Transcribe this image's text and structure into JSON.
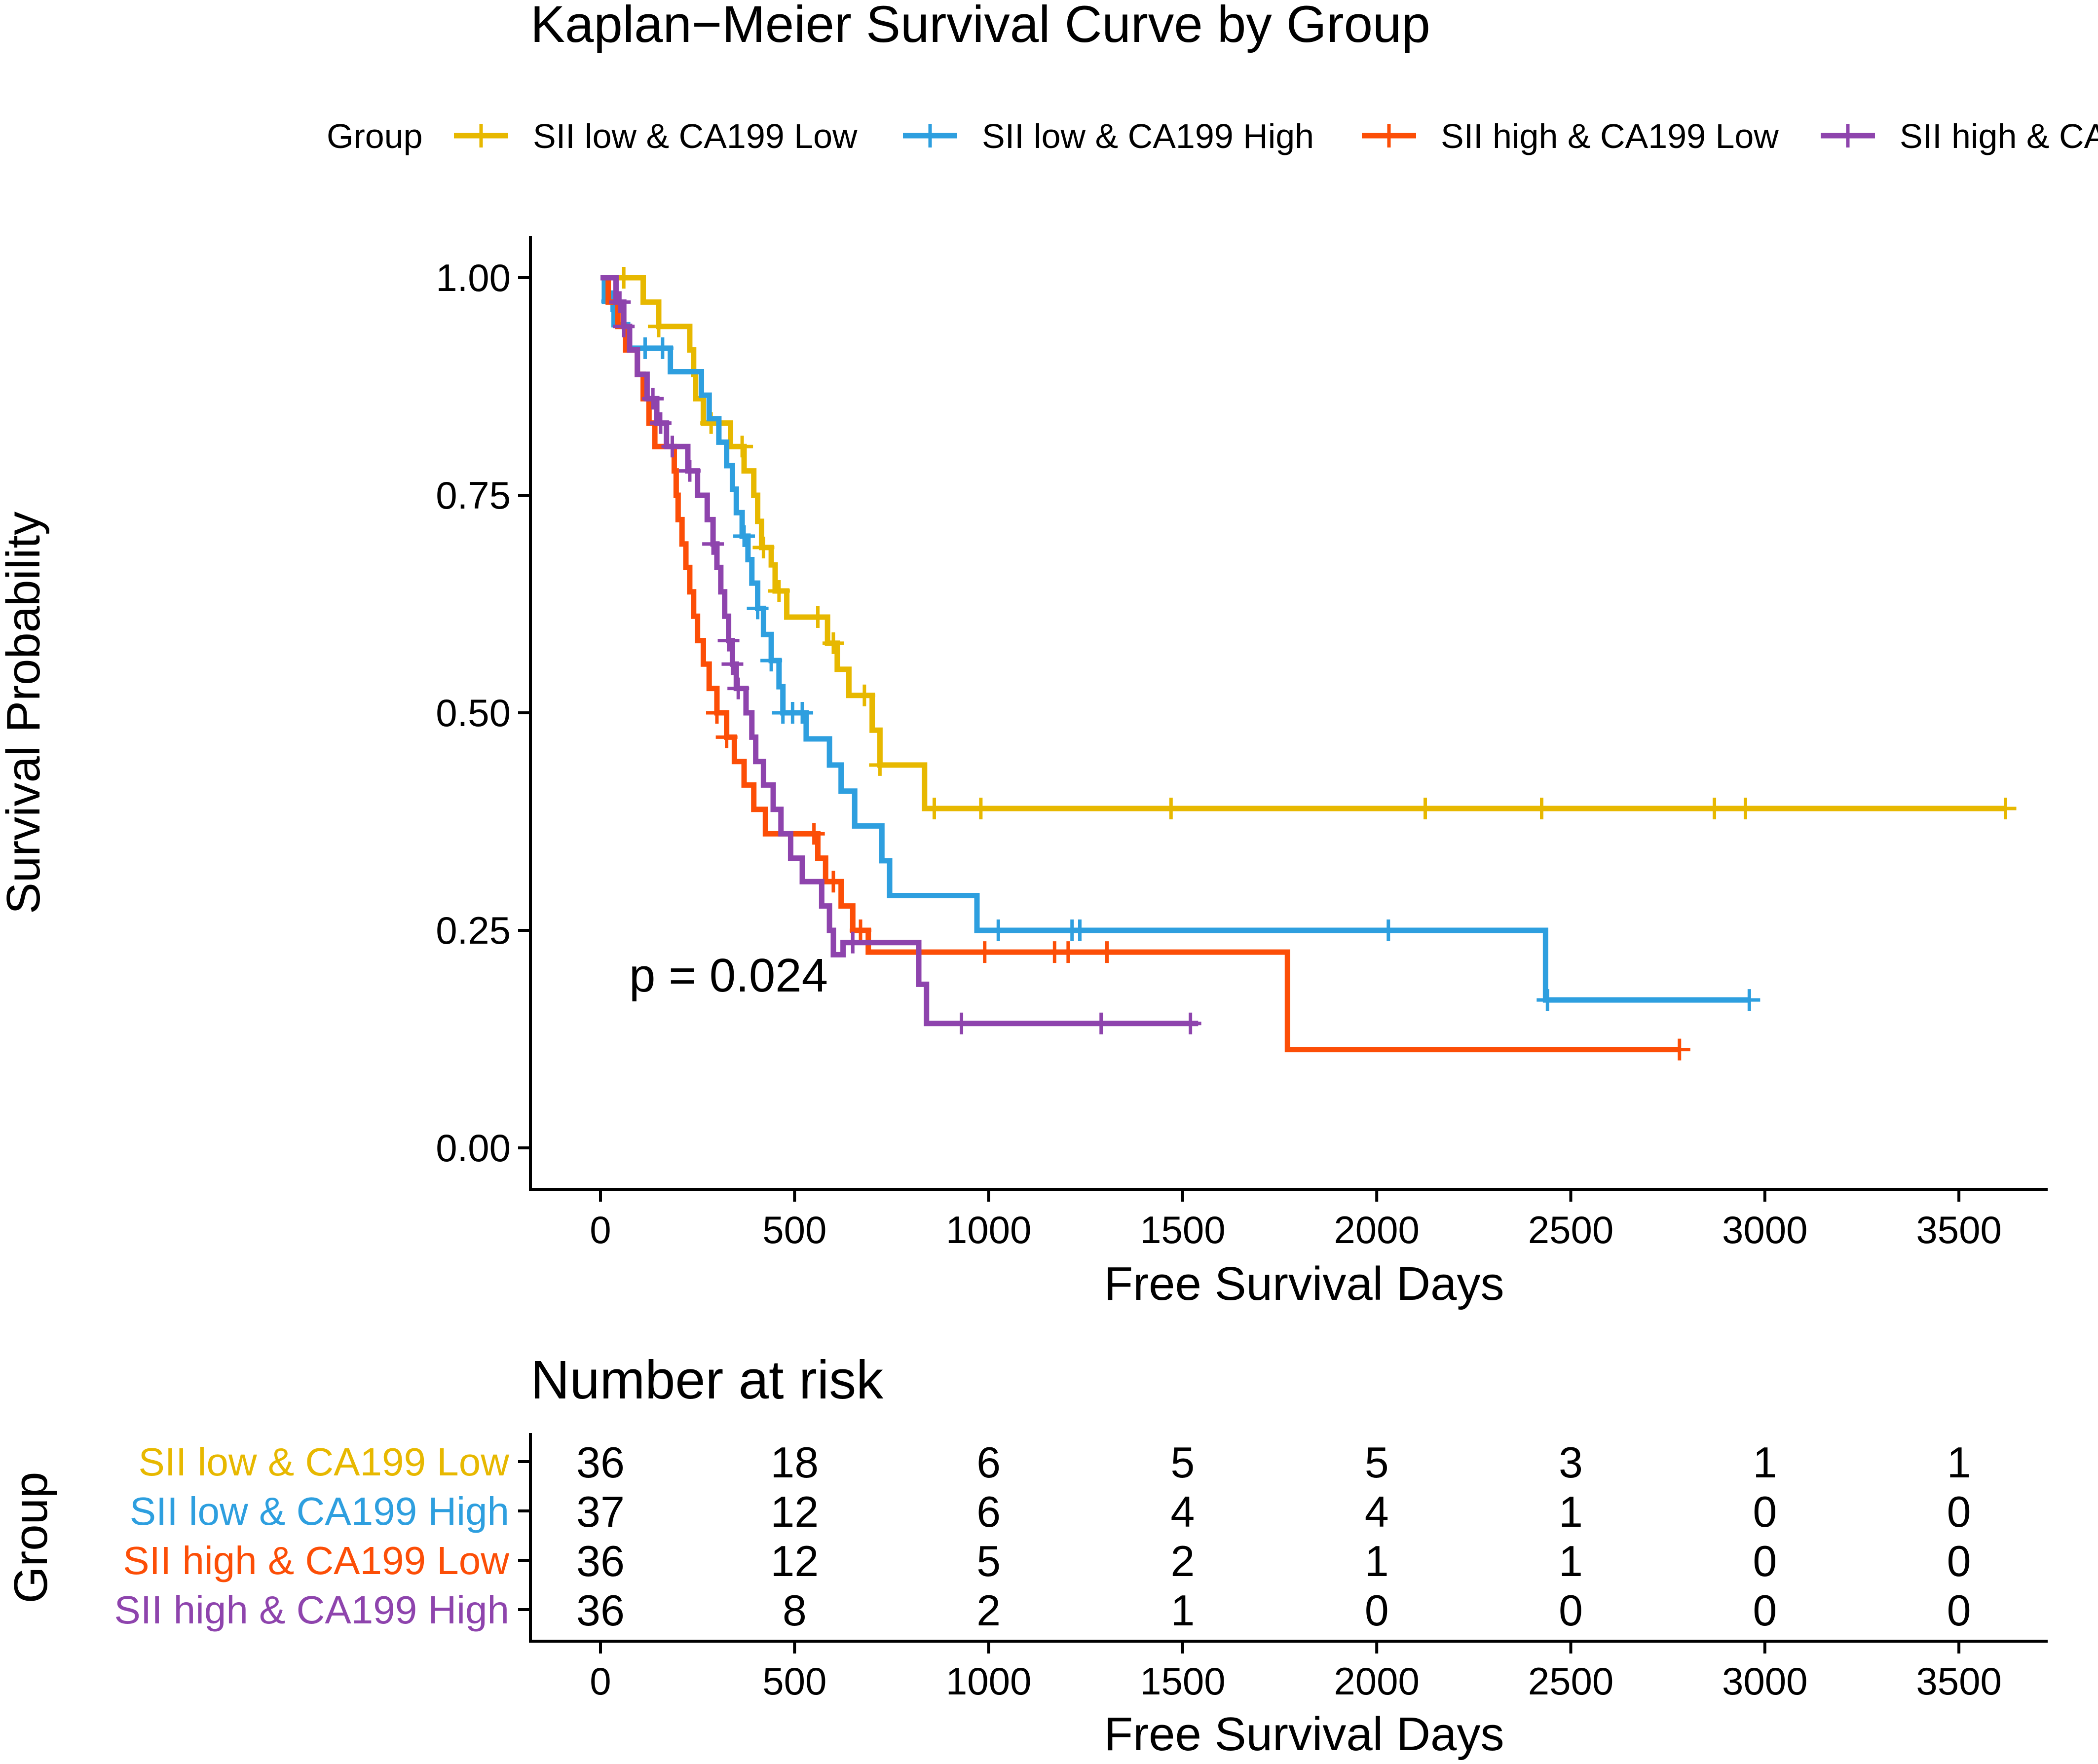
{
  "chart_data": {
    "type": "line",
    "subtype": "kaplan-meier",
    "title": "Kaplan−Meier Survival Curve by Group",
    "legend_title": "Group",
    "legend_position": "top",
    "xlabel": "Free Survival Days",
    "ylabel": "Survival Probability",
    "xlim": [
      0,
      3600
    ],
    "ylim": [
      0,
      1
    ],
    "x_ticks": [
      0,
      500,
      1000,
      1500,
      2000,
      2500,
      3000,
      3500
    ],
    "x_tick_labels": [
      "0",
      "500",
      "1000",
      "1500",
      "2000",
      "2500",
      "3000",
      "3500"
    ],
    "y_ticks": [
      0,
      0.25,
      0.5,
      0.75,
      1
    ],
    "y_tick_labels": [
      "0.00",
      "0.25",
      "0.50",
      "0.75",
      "1.00"
    ],
    "annotation": "p = 0.024",
    "series": [
      {
        "name": "SII low & CA199 Low",
        "color": "#E7B800",
        "steps": [
          [
            0,
            1.0
          ],
          [
            110,
            0.972
          ],
          [
            150,
            0.944
          ],
          [
            230,
            0.917
          ],
          [
            240,
            0.889
          ],
          [
            245,
            0.861
          ],
          [
            265,
            0.833
          ],
          [
            300,
            0.833
          ],
          [
            335,
            0.806
          ],
          [
            370,
            0.778
          ],
          [
            395,
            0.75
          ],
          [
            405,
            0.72
          ],
          [
            415,
            0.69
          ],
          [
            440,
            0.67
          ],
          [
            450,
            0.64
          ],
          [
            480,
            0.61
          ],
          [
            585,
            0.58
          ],
          [
            610,
            0.55
          ],
          [
            640,
            0.52
          ],
          [
            700,
            0.48
          ],
          [
            720,
            0.44
          ],
          [
            835,
            0.39
          ],
          [
            3620,
            0.39
          ]
        ],
        "censor_x": [
          60,
          150,
          285,
          365,
          420,
          460,
          560,
          600,
          680,
          720,
          860,
          980,
          1470,
          2125,
          2425,
          2870,
          2950,
          3620
        ],
        "at_risk": [
          36,
          18,
          6,
          5,
          5,
          3,
          1,
          1
        ]
      },
      {
        "name": "SII low & CA199 High",
        "color": "#2E9FDF",
        "steps": [
          [
            0,
            1.0
          ],
          [
            10,
            0.973
          ],
          [
            35,
            0.946
          ],
          [
            70,
            0.919
          ],
          [
            180,
            0.892
          ],
          [
            260,
            0.865
          ],
          [
            280,
            0.838
          ],
          [
            305,
            0.811
          ],
          [
            325,
            0.784
          ],
          [
            340,
            0.757
          ],
          [
            350,
            0.73
          ],
          [
            365,
            0.703
          ],
          [
            380,
            0.676
          ],
          [
            390,
            0.649
          ],
          [
            405,
            0.62
          ],
          [
            420,
            0.59
          ],
          [
            440,
            0.56
          ],
          [
            460,
            0.53
          ],
          [
            470,
            0.5
          ],
          [
            525,
            0.5
          ],
          [
            530,
            0.47
          ],
          [
            590,
            0.44
          ],
          [
            620,
            0.41
          ],
          [
            655,
            0.37
          ],
          [
            725,
            0.33
          ],
          [
            745,
            0.29
          ],
          [
            970,
            0.25
          ],
          [
            2425,
            0.25
          ],
          [
            2435,
            0.17
          ],
          [
            2960,
            0.17
          ]
        ],
        "censor_x": [
          30,
          115,
          160,
          370,
          405,
          440,
          470,
          495,
          520,
          1025,
          1215,
          1235,
          2030,
          2440,
          2960
        ],
        "at_risk": [
          37,
          12,
          6,
          4,
          4,
          1,
          0,
          0
        ]
      },
      {
        "name": "SII high & CA199 Low",
        "color": "#FC4E07",
        "steps": [
          [
            0,
            1.0
          ],
          [
            20,
            0.972
          ],
          [
            45,
            0.944
          ],
          [
            65,
            0.917
          ],
          [
            95,
            0.889
          ],
          [
            110,
            0.861
          ],
          [
            125,
            0.833
          ],
          [
            140,
            0.806
          ],
          [
            190,
            0.778
          ],
          [
            195,
            0.75
          ],
          [
            200,
            0.722
          ],
          [
            210,
            0.694
          ],
          [
            220,
            0.667
          ],
          [
            230,
            0.639
          ],
          [
            240,
            0.611
          ],
          [
            250,
            0.583
          ],
          [
            265,
            0.556
          ],
          [
            280,
            0.528
          ],
          [
            300,
            0.5
          ],
          [
            325,
            0.472
          ],
          [
            345,
            0.444
          ],
          [
            370,
            0.417
          ],
          [
            395,
            0.389
          ],
          [
            425,
            0.361
          ],
          [
            560,
            0.333
          ],
          [
            580,
            0.306
          ],
          [
            620,
            0.278
          ],
          [
            650,
            0.25
          ],
          [
            690,
            0.225
          ],
          [
            1765,
            0.225
          ],
          [
            1770,
            0.113
          ],
          [
            2780,
            0.113
          ]
        ],
        "censor_x": [
          300,
          325,
          550,
          600,
          670,
          990,
          1170,
          1205,
          1305,
          2780
        ],
        "at_risk": [
          36,
          12,
          5,
          2,
          1,
          1,
          0,
          0
        ]
      },
      {
        "name": "SII high & CA199 High",
        "color": "#8E44AD",
        "steps": [
          [
            0,
            1.0
          ],
          [
            40,
            0.972
          ],
          [
            60,
            0.944
          ],
          [
            75,
            0.917
          ],
          [
            95,
            0.889
          ],
          [
            120,
            0.861
          ],
          [
            145,
            0.833
          ],
          [
            170,
            0.806
          ],
          [
            225,
            0.778
          ],
          [
            250,
            0.75
          ],
          [
            275,
            0.722
          ],
          [
            290,
            0.694
          ],
          [
            300,
            0.667
          ],
          [
            310,
            0.639
          ],
          [
            320,
            0.611
          ],
          [
            330,
            0.583
          ],
          [
            340,
            0.556
          ],
          [
            350,
            0.528
          ],
          [
            375,
            0.5
          ],
          [
            390,
            0.472
          ],
          [
            400,
            0.444
          ],
          [
            420,
            0.417
          ],
          [
            445,
            0.389
          ],
          [
            465,
            0.361
          ],
          [
            490,
            0.333
          ],
          [
            520,
            0.306
          ],
          [
            560,
            0.306
          ],
          [
            570,
            0.278
          ],
          [
            590,
            0.25
          ],
          [
            600,
            0.222
          ],
          [
            625,
            0.236
          ],
          [
            810,
            0.236
          ],
          [
            820,
            0.188
          ],
          [
            840,
            0.143
          ],
          [
            1540,
            0.143
          ]
        ],
        "censor_x": [
          50,
          60,
          135,
          155,
          185,
          230,
          290,
          330,
          340,
          355,
          650,
          930,
          1290,
          1520
        ],
        "at_risk": [
          36,
          8,
          2,
          1,
          0,
          0,
          0,
          0
        ]
      }
    ],
    "risk_table": {
      "title": "Number at risk",
      "ylabel": "Group",
      "xlabel": "Free Survival Days",
      "x_ticks": [
        0,
        500,
        1000,
        1500,
        2000,
        2500,
        3000,
        3500
      ],
      "x_tick_labels": [
        "0",
        "500",
        "1000",
        "1500",
        "2000",
        "2500",
        "3000",
        "3500"
      ]
    }
  }
}
